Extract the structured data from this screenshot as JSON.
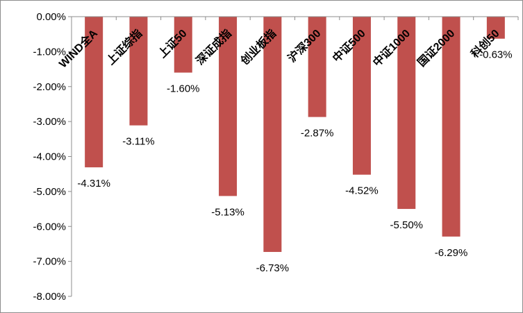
{
  "chart_data": {
    "type": "bar",
    "categories": [
      "WIND全A",
      "上证综指",
      "上证50",
      "深证成指",
      "创业板指",
      "沪深300",
      "中证500",
      "中证1000",
      "国证2000",
      "科创50"
    ],
    "values": [
      -4.31,
      -3.11,
      -1.6,
      -5.13,
      -6.73,
      -2.87,
      -4.52,
      -5.5,
      -6.29,
      -0.63
    ],
    "data_labels": [
      "-4.31%",
      "-3.11%",
      "-1.60%",
      "-5.13%",
      "-6.73%",
      "-2.87%",
      "-4.52%",
      "-5.50%",
      "-6.29%",
      "-0.63%"
    ],
    "y_ticks": [
      0,
      -1,
      -2,
      -3,
      -4,
      -5,
      -6,
      -7,
      -8
    ],
    "y_tick_labels": [
      "0.00%",
      "-1.00%",
      "-2.00%",
      "-3.00%",
      "-4.00%",
      "-5.00%",
      "-6.00%",
      "-7.00%",
      "-8.00%"
    ],
    "ylim": [
      -8,
      0
    ],
    "bar_color": "#c0504d",
    "axis_color": "#8c8c8c",
    "grid": false,
    "legend": "none",
    "title": "",
    "xlabel": "",
    "ylabel": ""
  }
}
